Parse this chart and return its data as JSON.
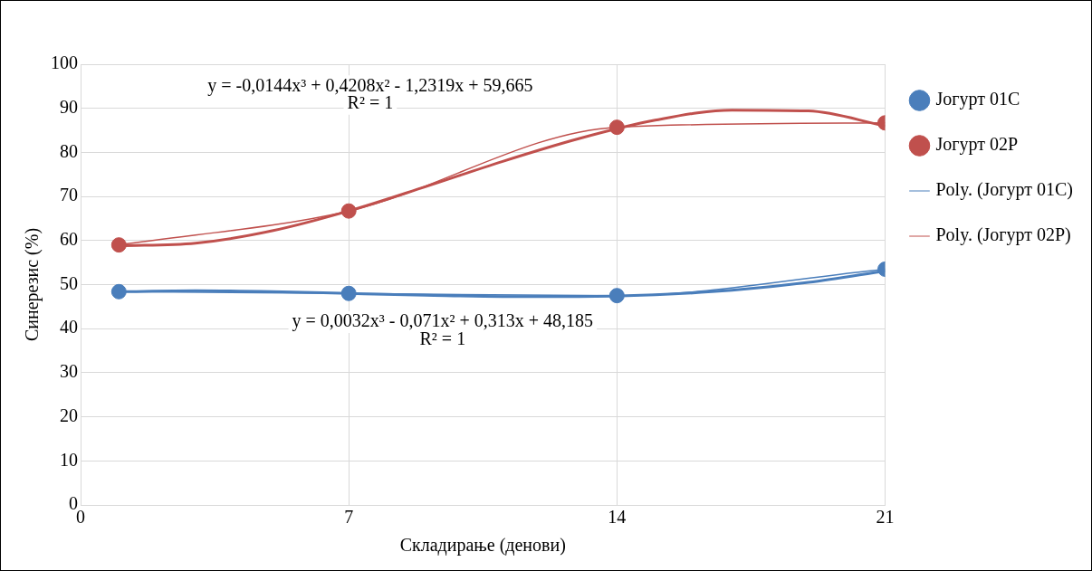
{
  "chart_data": {
    "type": "line",
    "xlabel": "Складирање (денови)",
    "ylabel": "Синерезис (%)",
    "x": [
      1,
      7,
      14,
      21
    ],
    "xlim": [
      0,
      21
    ],
    "xticks": [
      0,
      7,
      14,
      21
    ],
    "ylim": [
      0,
      100
    ],
    "yticks": [
      0,
      10,
      20,
      30,
      40,
      50,
      60,
      70,
      80,
      90,
      100
    ],
    "grid": true,
    "legend": "right",
    "marker": "circle",
    "line_style": "solid",
    "series": [
      {
        "name": "Јогурт 01С",
        "color": "#4a7ebb",
        "values": [
          48.4,
          48,
          47.5,
          53.5
        ]
      },
      {
        "name": "Јогурт 02Р",
        "color": "#c0504d",
        "values": [
          59,
          66.7,
          85.7,
          86.7
        ]
      },
      {
        "name": "Poly. (Јогурт 01С)",
        "color": "#4a7ebb",
        "type": "line",
        "marker": "none",
        "x": [
          1,
          3,
          5,
          7,
          9,
          11,
          13,
          15,
          17,
          19,
          21
        ],
        "values": [
          48.4,
          48.6,
          48.4,
          48,
          47.6,
          47.3,
          47.3,
          47.7,
          48.7,
          50.5,
          53.1
        ]
      },
      {
        "name": "Poly. (Јогурт 02Р)",
        "color": "#c0504d",
        "type": "line",
        "marker": "none",
        "x": [
          1,
          3,
          5,
          7,
          9,
          11,
          13,
          15,
          17,
          19,
          21
        ],
        "values": [
          58.8,
          59.4,
          62.2,
          66.7,
          72.2,
          77.9,
          83.1,
          87.3,
          89.6,
          89.4,
          86
        ]
      }
    ],
    "annotations": [
      "y = -0,0144x³ + 0,4208x² - 1,2319x + 59,665",
      "R² = 1",
      "y = 0,0032x³ - 0,071x² + 0,313x + 48,185",
      "R² = 1"
    ]
  }
}
